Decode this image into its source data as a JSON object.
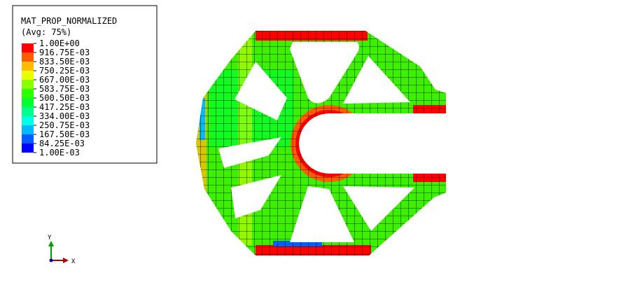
{
  "legend": {
    "title": "MAT_PROP_NORMALIZED",
    "subtitle": "(Avg: 75%)",
    "levels": [
      "1.00E+00",
      "916.75E-03",
      "833.50E-03",
      "750.25E-03",
      "667.00E-03",
      "583.75E-03",
      "500.50E-03",
      "417.25E-03",
      "334.00E-03",
      "250.75E-03",
      "167.50E-03",
      "84.25E-03",
      "1.00E-03"
    ],
    "colors": [
      "#ff0000",
      "#ff5d00",
      "#ffb900",
      "#e8ff00",
      "#8bff00",
      "#2eff00",
      "#00ff2e",
      "#00ff8b",
      "#00ffe8",
      "#00b9ff",
      "#005dff",
      "#0000ff"
    ]
  },
  "triad": {
    "y": "Y",
    "x": "X"
  }
}
